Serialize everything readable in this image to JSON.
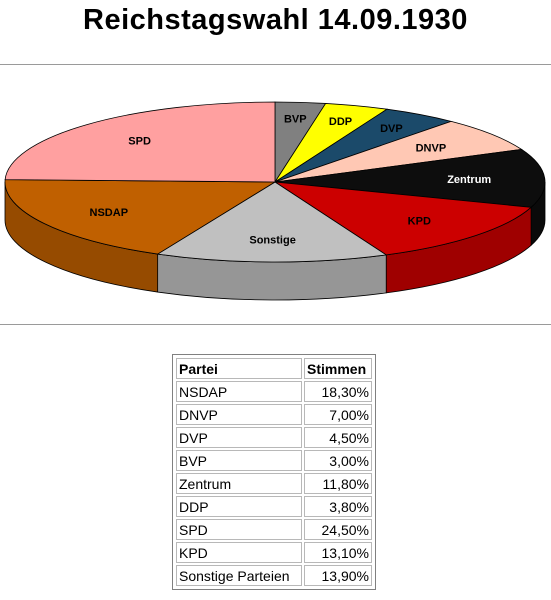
{
  "title": "Reichstagswahl 14.09.1930",
  "chart_data": {
    "type": "pie",
    "title": "Reichstagswahl 14.09.1930",
    "series": [
      {
        "name": "BVP",
        "value": 3.0,
        "color": "#808080"
      },
      {
        "name": "DDP",
        "value": 3.8,
        "color": "#ffff00"
      },
      {
        "name": "DVP",
        "value": 4.5,
        "color": "#1b4a6a"
      },
      {
        "name": "DNVP",
        "value": 7.0,
        "color": "#ffc8b4"
      },
      {
        "name": "Zentrum",
        "value": 11.8,
        "color": "#0d0d0d"
      },
      {
        "name": "KPD",
        "value": 13.1,
        "color": "#cc0000"
      },
      {
        "name": "Sonstige",
        "value": 13.9,
        "color": "#c0c0c0"
      },
      {
        "name": "NSDAP",
        "value": 18.3,
        "color": "#c06000"
      },
      {
        "name": "SPD",
        "value": 24.5,
        "color": "#ffa0a0"
      }
    ]
  },
  "table": {
    "headers": [
      "Partei",
      "Stimmen"
    ],
    "rows": [
      [
        "NSDAP",
        "18,30%"
      ],
      [
        "DNVP",
        "7,00%"
      ],
      [
        "DVP",
        "4,50%"
      ],
      [
        "BVP",
        "3,00%"
      ],
      [
        "Zentrum",
        "11,80%"
      ],
      [
        "DDP",
        "3,80%"
      ],
      [
        "SPD",
        "24,50%"
      ],
      [
        "KPD",
        "13,10%"
      ],
      [
        "Sonstige Parteien",
        "13,90%"
      ]
    ]
  }
}
